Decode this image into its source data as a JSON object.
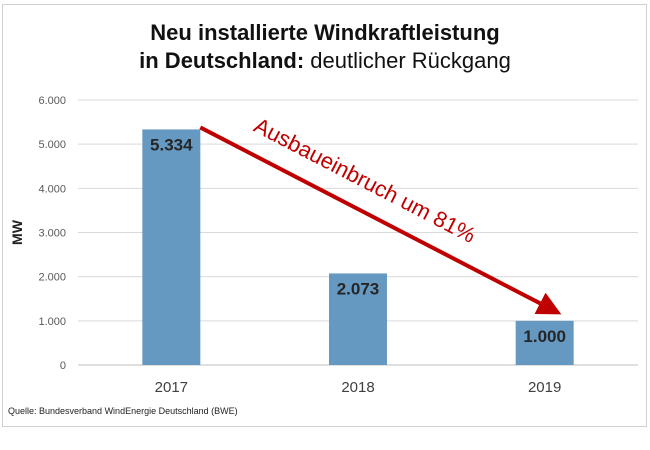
{
  "title": {
    "line1": "Neu installierte Windkraftleistung",
    "line2_bold": "in Deutschland:",
    "line2_rest": " deutlicher Rückgang"
  },
  "source": "Quelle: Bundesverband WindEnergie Deutschland (BWE)",
  "colors": {
    "bar": "#6699c2",
    "arrow": "#c00000",
    "grid": "#d9d9d9"
  },
  "chart_data": {
    "type": "bar",
    "categories": [
      "2017",
      "2018",
      "2019"
    ],
    "values": [
      5334,
      2073,
      1000
    ],
    "value_labels": [
      "5.334",
      "2.073",
      "1.000"
    ],
    "ylabel": "MW",
    "ylim": [
      0,
      6000
    ],
    "yticks": [
      0,
      1000,
      2000,
      3000,
      4000,
      5000,
      6000
    ],
    "ytick_labels": [
      "0",
      "1.000",
      "2.000",
      "3.000",
      "4.000",
      "5.000",
      "6.000"
    ],
    "grid": true,
    "annotation": "Ausbaueinbruch um 81%"
  }
}
